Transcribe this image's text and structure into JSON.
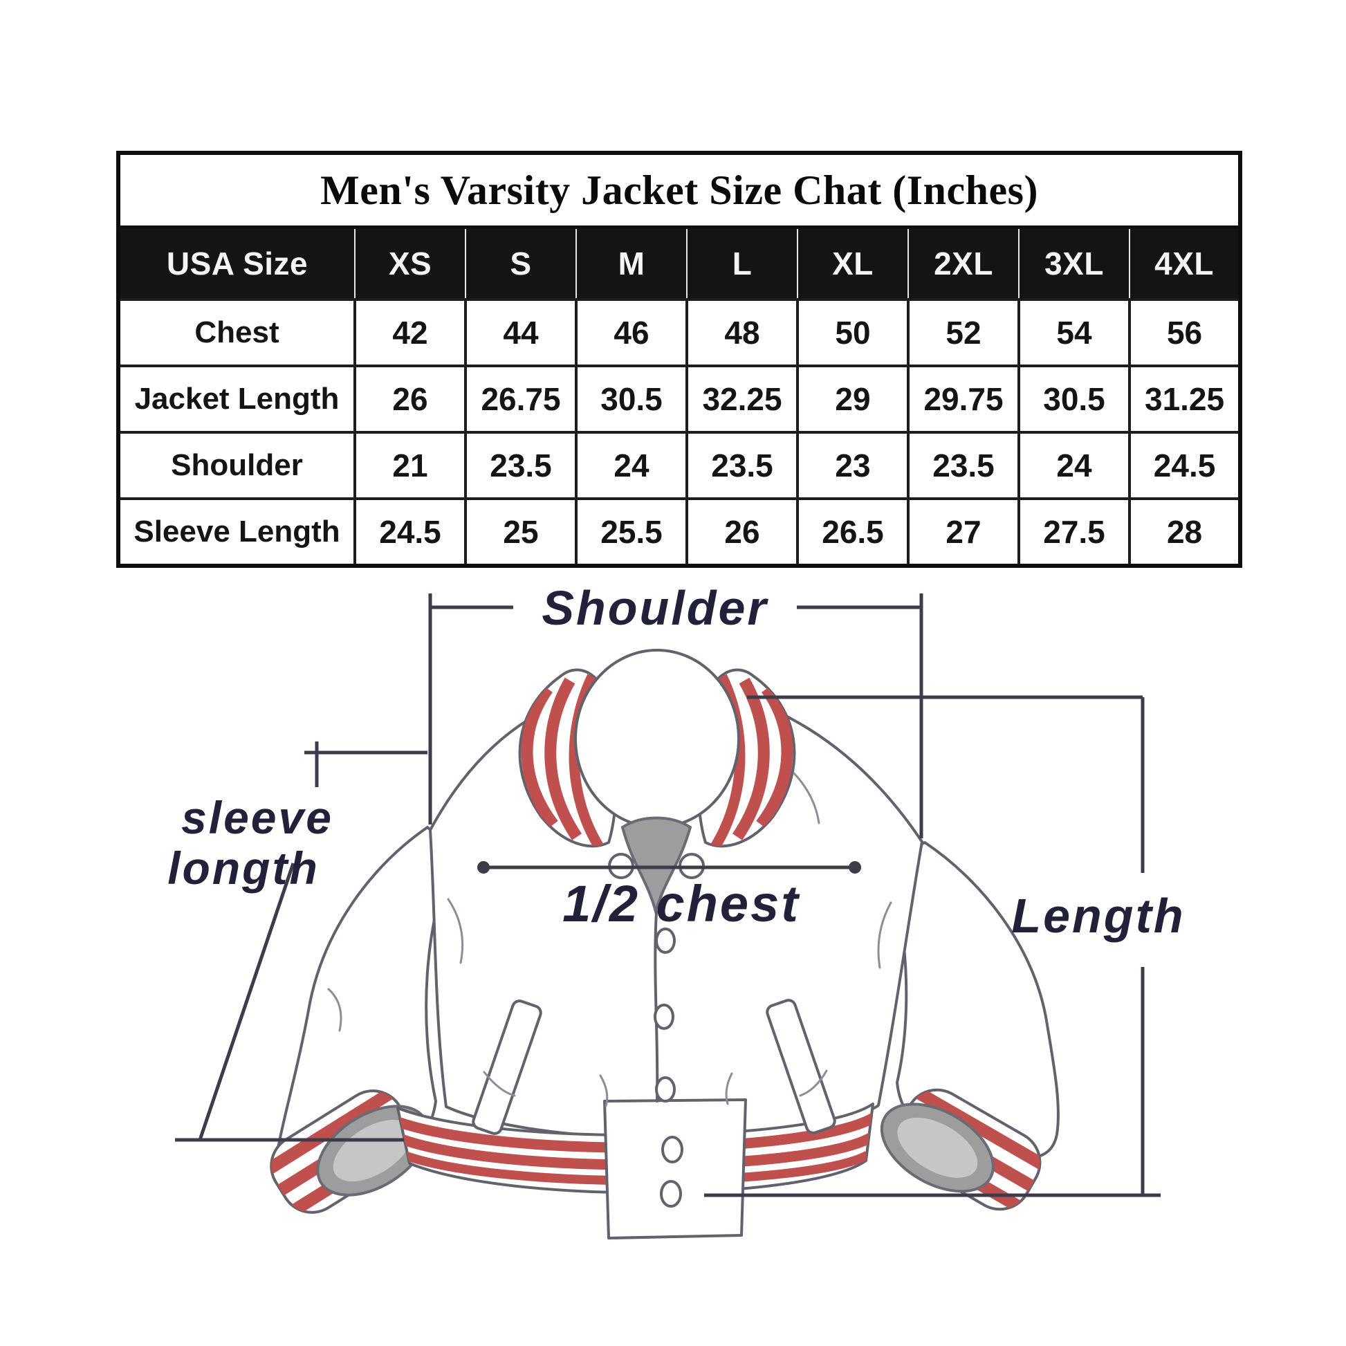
{
  "table": {
    "title": "Men's Varsity Jacket Size Chat (Inches)",
    "columns": [
      "USA Size",
      "XS",
      "S",
      "M",
      "L",
      "XL",
      "2XL",
      "3XL",
      "4XL"
    ],
    "rows": [
      {
        "label": "Chest",
        "values": [
          "42",
          "44",
          "46",
          "48",
          "50",
          "52",
          "54",
          "56"
        ]
      },
      {
        "label": "Jacket Length",
        "values": [
          "26",
          "26.75",
          "30.5",
          "32.25",
          "29",
          "29.75",
          "30.5",
          "31.25"
        ]
      },
      {
        "label": "Shoulder",
        "values": [
          "21",
          "23.5",
          "24",
          "23.5",
          "23",
          "23.5",
          "24",
          "24.5"
        ]
      },
      {
        "label": "Sleeve Length",
        "values": [
          "24.5",
          "25",
          "25.5",
          "26",
          "26.5",
          "27",
          "27.5",
          "28"
        ]
      }
    ]
  },
  "diagram": {
    "shoulder_label": "Shoulder",
    "sleeve_label_line1": "sleeve",
    "sleeve_label_line2": "longth",
    "half_chest_label": "1/2 chest",
    "length_label": "Length"
  },
  "colors": {
    "stripe_red": "#c0504d",
    "label_ink": "#21213a",
    "header_bg": "#141414",
    "header_text": "#f4f4f4"
  }
}
